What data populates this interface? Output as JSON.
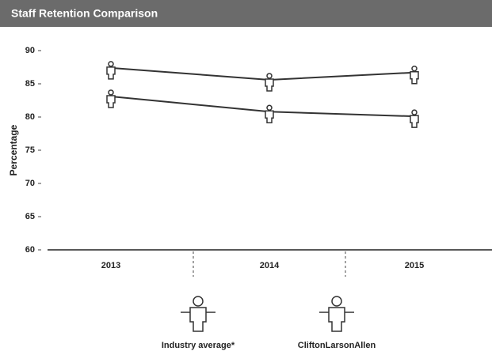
{
  "chart_data": {
    "type": "line",
    "title": "Staff Retention Comparison",
    "y_label": "Percentage",
    "categories": [
      "2013",
      "2014",
      "2015"
    ],
    "series": [
      {
        "name": "CliftonLarsonAllen",
        "color": "#333333",
        "values": [
          87.4,
          85.6,
          86.7
        ]
      },
      {
        "name": "Industry average*",
        "color": "#333333",
        "values": [
          83.1,
          80.8,
          80.1
        ]
      }
    ],
    "ylim": [
      60,
      90
    ],
    "yticks": [
      60,
      65,
      70,
      75,
      80,
      85,
      90
    ],
    "legend": "bottom"
  }
}
